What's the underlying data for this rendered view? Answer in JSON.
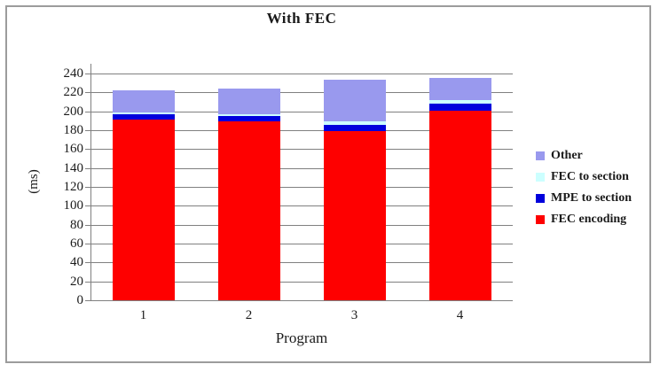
{
  "chart_data": {
    "type": "bar",
    "stacked": true,
    "title": "With FEC",
    "xlabel": "Program",
    "ylabel": "(ms)",
    "categories": [
      "1",
      "2",
      "3",
      "4"
    ],
    "series": [
      {
        "name": "FEC encoding",
        "color": "#FE0000",
        "values": [
          191,
          189,
          179,
          201
        ]
      },
      {
        "name": "MPE to section",
        "color": "#0000DC",
        "values": [
          6,
          6,
          7,
          7
        ]
      },
      {
        "name": "FEC to section",
        "color": "#CCFFFF",
        "values": [
          2,
          2,
          3,
          4
        ]
      },
      {
        "name": "Other",
        "color": "#9999EE",
        "values": [
          23,
          27,
          44,
          23
        ]
      }
    ],
    "totals": [
      222,
      224,
      233,
      235
    ],
    "ylim": [
      0,
      240
    ],
    "yticks": [
      0,
      20,
      40,
      60,
      80,
      100,
      120,
      140,
      160,
      180,
      200,
      220,
      240
    ],
    "grid": true,
    "legend_position": "right",
    "legend_order": [
      "Other",
      "FEC to section",
      "MPE to section",
      "FEC encoding"
    ]
  },
  "colors": {
    "grid": "#808080",
    "axis": "#808080",
    "text": "#1a1a1a",
    "frame_border": "#9c9c9c",
    "background": "#FFFFFF"
  }
}
